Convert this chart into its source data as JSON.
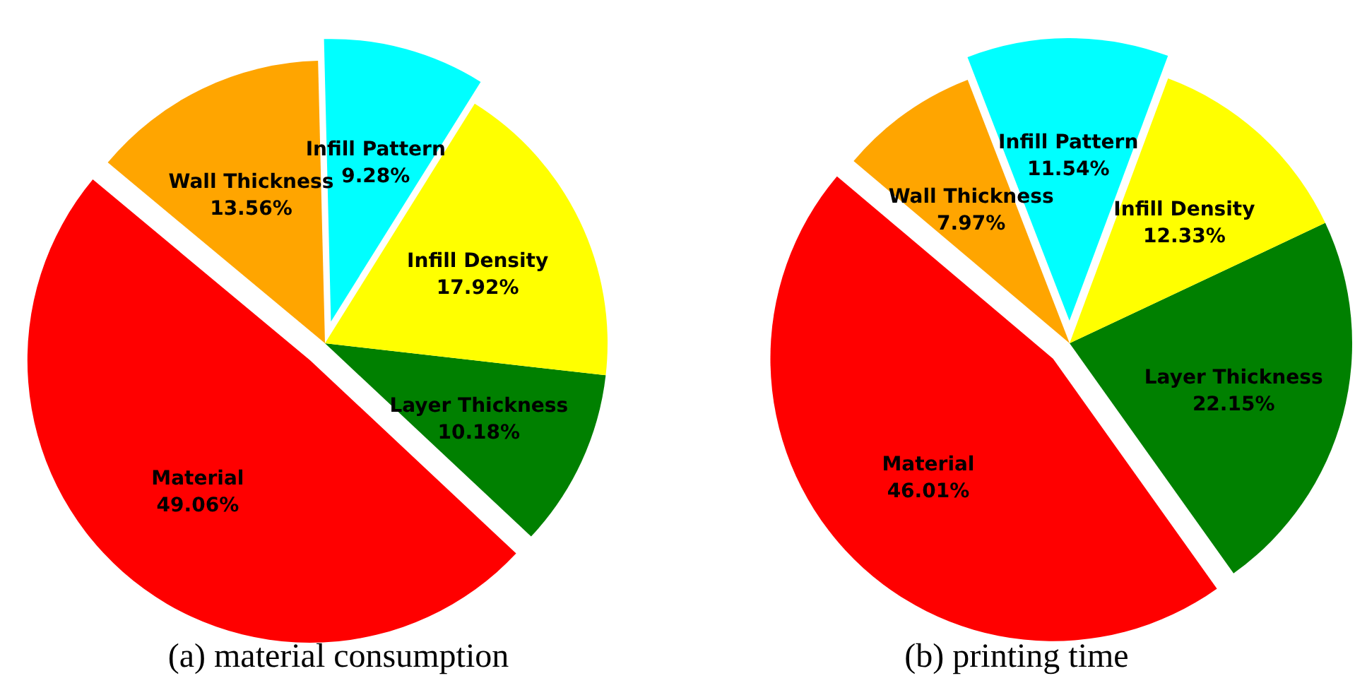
{
  "chart_data": [
    {
      "type": "pie",
      "title": "(a) material consumption",
      "categories": [
        "Infill Pattern",
        "Wall Thickness",
        "Material",
        "Layer Thickness",
        "Infill Density"
      ],
      "values": [
        9.28,
        13.56,
        49.06,
        10.18,
        17.92
      ],
      "colors": [
        "#00ffff",
        "#ffa500",
        "#ff0000",
        "#008000",
        "#ffff00"
      ],
      "value_labels": [
        "9.28%",
        "13.56%",
        "49.06%",
        "10.18%",
        "17.92%"
      ],
      "legend": false
    },
    {
      "type": "pie",
      "title": "(b) printing time",
      "categories": [
        "Infill Pattern",
        "Wall Thickness",
        "Material",
        "Layer Thickness",
        "Infill Density"
      ],
      "values": [
        11.54,
        7.97,
        46.01,
        22.15,
        12.33
      ],
      "colors": [
        "#00ffff",
        "#ffa500",
        "#ff0000",
        "#008000",
        "#ffff00"
      ],
      "value_labels": [
        "11.54%",
        "7.97%",
        "46.01%",
        "22.15%",
        "12.33%"
      ],
      "legend": false
    }
  ]
}
